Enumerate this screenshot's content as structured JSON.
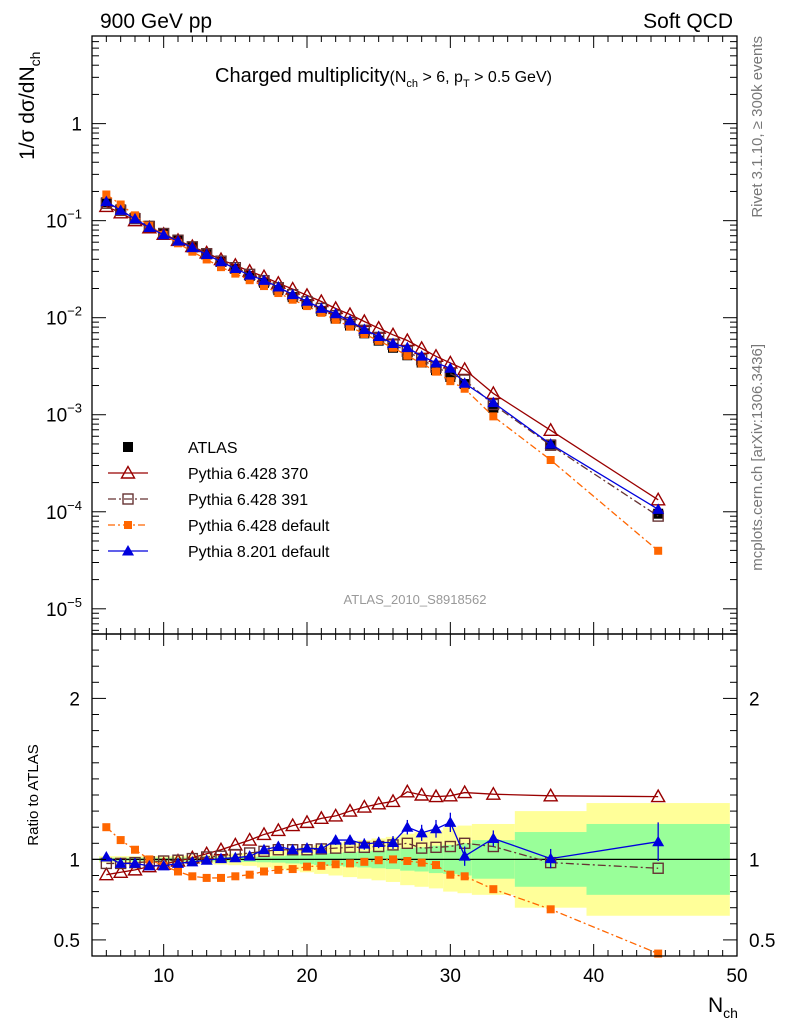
{
  "header": {
    "left": "900 GeV pp",
    "right": "Soft QCD"
  },
  "side_labels": {
    "upper": "Rivet 3.1.10, ≥ 300k events",
    "lower": "mcplots.cern.ch [arXiv:1306.3436]"
  },
  "chart_data": {
    "type": "line",
    "title": "Charged multiplicity",
    "title_cut": "(N_ch > 6, p_T > 0.5 GeV)",
    "title_cut_parts": {
      "open": "(N",
      "sub1": "ch",
      "mid": " > 6, p",
      "sub2": "T",
      "close": " > 0.5 GeV)"
    },
    "analysis_id": "ATLAS_2010_S8918562",
    "xlabel": {
      "main": "N",
      "sub": "ch"
    },
    "ylabel": {
      "main": "1/σ dσ/dN",
      "sub": "ch"
    },
    "ratio_ylabel": "Ratio to ATLAS",
    "xlim": [
      5,
      50
    ],
    "x_ticks": [
      10,
      20,
      30,
      40,
      50
    ],
    "x_tick_labels": [
      "10",
      "20",
      "30",
      "40",
      "50"
    ],
    "ylim": [
      5.5e-06,
      8
    ],
    "y_scale": "log",
    "y_ticks": [
      {
        "base": "10",
        "exp": "−5",
        "value": 1e-05
      },
      {
        "base": "10",
        "exp": "−4",
        "value": 0.0001
      },
      {
        "base": "10",
        "exp": "−3",
        "value": 0.001
      },
      {
        "base": "10",
        "exp": "−2",
        "value": 0.01
      },
      {
        "base": "10",
        "exp": "−1",
        "value": 0.1
      },
      {
        "base": "1",
        "exp": "",
        "value": 1
      }
    ],
    "ratio_ylim": [
      0.4,
      2.4
    ],
    "ratio_y_ticks": [
      0.5,
      1,
      2
    ],
    "ratio_y_tick_labels": [
      "0.5",
      "1",
      "2"
    ],
    "legend_position": "lower-left",
    "bins": [
      [
        5.5,
        6.5
      ],
      [
        6.5,
        7.5
      ],
      [
        7.5,
        8.5
      ],
      [
        8.5,
        9.5
      ],
      [
        9.5,
        10.5
      ],
      [
        10.5,
        11.5
      ],
      [
        11.5,
        12.5
      ],
      [
        12.5,
        13.5
      ],
      [
        13.5,
        14.5
      ],
      [
        14.5,
        15.5
      ],
      [
        15.5,
        16.5
      ],
      [
        16.5,
        17.5
      ],
      [
        17.5,
        18.5
      ],
      [
        18.5,
        19.5
      ],
      [
        19.5,
        20.5
      ],
      [
        20.5,
        21.5
      ],
      [
        21.5,
        22.5
      ],
      [
        22.5,
        23.5
      ],
      [
        23.5,
        24.5
      ],
      [
        24.5,
        25.5
      ],
      [
        25.5,
        26.5
      ],
      [
        26.5,
        27.5
      ],
      [
        27.5,
        28.5
      ],
      [
        28.5,
        29.5
      ],
      [
        29.5,
        30.5
      ],
      [
        30.5,
        31.5
      ],
      [
        31.5,
        34.5
      ],
      [
        34.5,
        39.5
      ],
      [
        39.5,
        49.5
      ]
    ],
    "x": [
      6,
      7,
      8,
      9,
      10,
      11,
      12,
      13,
      14,
      15,
      16,
      17,
      18,
      19,
      20,
      21,
      22,
      23,
      24,
      25,
      26,
      27,
      28,
      29,
      30,
      31,
      33,
      37,
      44.5
    ],
    "atlas_values": [
      0.155,
      0.131,
      0.107,
      0.0885,
      0.0745,
      0.0632,
      0.0535,
      0.045,
      0.0375,
      0.0318,
      0.0269,
      0.0229,
      0.0192,
      0.0163,
      0.0138,
      0.0117,
      0.0098,
      0.0083,
      0.0069,
      0.0058,
      0.0049,
      0.0041,
      0.00345,
      0.00288,
      0.00245,
      0.00207,
      0.00118,
      0.000495,
      9.55e-05
    ],
    "ratio_bands": {
      "stat": [
        0.01,
        0.01,
        0.01,
        0.01,
        0.01,
        0.012,
        0.012,
        0.013,
        0.014,
        0.015,
        0.016,
        0.018,
        0.02,
        0.025,
        0.03,
        0.035,
        0.04,
        0.045,
        0.05,
        0.055,
        0.06,
        0.07,
        0.075,
        0.085,
        0.09,
        0.1,
        0.12,
        0.17,
        0.22
      ],
      "total": [
        0.02,
        0.02,
        0.02,
        0.02,
        0.02,
        0.022,
        0.025,
        0.028,
        0.032,
        0.036,
        0.04,
        0.05,
        0.06,
        0.07,
        0.08,
        0.09,
        0.1,
        0.11,
        0.12,
        0.13,
        0.14,
        0.16,
        0.17,
        0.18,
        0.2,
        0.21,
        0.22,
        0.3,
        0.35
      ]
    },
    "series": [
      {
        "name": "ATLAS",
        "color": "#000000",
        "marker": "square-filled",
        "values": [
          0.155,
          0.131,
          0.107,
          0.0885,
          0.0745,
          0.0632,
          0.0535,
          0.045,
          0.0375,
          0.0318,
          0.0269,
          0.0229,
          0.0192,
          0.0163,
          0.0138,
          0.0117,
          0.0098,
          0.0083,
          0.0069,
          0.0058,
          0.0049,
          0.0041,
          0.00345,
          0.00288,
          0.00245,
          0.00207,
          0.00118,
          0.000495,
          9.55e-05
        ],
        "ratio": []
      },
      {
        "name": "Pythia 6.428 370",
        "color": "#990000",
        "marker": "triangle-open",
        "dash": "",
        "ratio": [
          0.905,
          0.92,
          0.935,
          0.955,
          0.97,
          0.99,
          1.01,
          1.035,
          1.06,
          1.09,
          1.12,
          1.155,
          1.18,
          1.21,
          1.23,
          1.255,
          1.27,
          1.3,
          1.325,
          1.345,
          1.36,
          1.42,
          1.4,
          1.39,
          1.395,
          1.415,
          1.405,
          1.395,
          1.39
        ],
        "ratio_err": []
      },
      {
        "name": "Pythia 6.428 391",
        "color": "#663333",
        "marker": "square-open",
        "dash": "8,3,2,3",
        "ratio": [
          0.975,
          0.975,
          0.98,
          0.985,
          0.99,
          0.995,
          1.005,
          1.015,
          1.02,
          1.03,
          1.04,
          1.05,
          1.06,
          1.06,
          1.06,
          1.065,
          1.07,
          1.075,
          1.075,
          1.08,
          1.09,
          1.1,
          1.07,
          1.075,
          1.08,
          1.1,
          1.08,
          0.98,
          0.945
        ],
        "ratio_err": []
      },
      {
        "name": "Pythia 6.428 default",
        "color": "#ff6600",
        "marker": "square-filled-small",
        "dash": "7,3,2,3",
        "ratio": [
          1.2,
          1.12,
          1.06,
          1.0,
          0.96,
          0.925,
          0.895,
          0.885,
          0.885,
          0.895,
          0.905,
          0.925,
          0.935,
          0.94,
          0.955,
          0.96,
          0.97,
          0.975,
          0.985,
          0.995,
          1.0,
          0.99,
          0.98,
          0.965,
          0.905,
          0.895,
          0.815,
          0.69,
          0.415
        ],
        "ratio_err": []
      },
      {
        "name": "Pythia 8.201 default",
        "color": "#0000dd",
        "marker": "triangle-filled",
        "dash": "",
        "ratio": [
          1.015,
          0.975,
          0.975,
          0.96,
          0.96,
          0.975,
          0.985,
          0.995,
          1.005,
          1.01,
          1.02,
          1.06,
          1.08,
          1.06,
          1.07,
          1.065,
          1.12,
          1.12,
          1.095,
          1.105,
          1.105,
          1.2,
          1.165,
          1.19,
          1.23,
          1.02,
          1.13,
          1.005,
          1.11
        ],
        "ratio_err": [
          0.01,
          0.01,
          0.01,
          0.01,
          0.01,
          0.01,
          0.01,
          0.012,
          0.012,
          0.014,
          0.015,
          0.018,
          0.02,
          0.022,
          0.025,
          0.025,
          0.03,
          0.03,
          0.035,
          0.035,
          0.04,
          0.045,
          0.05,
          0.055,
          0.06,
          0.06,
          0.05,
          0.06,
          0.12
        ]
      }
    ]
  }
}
